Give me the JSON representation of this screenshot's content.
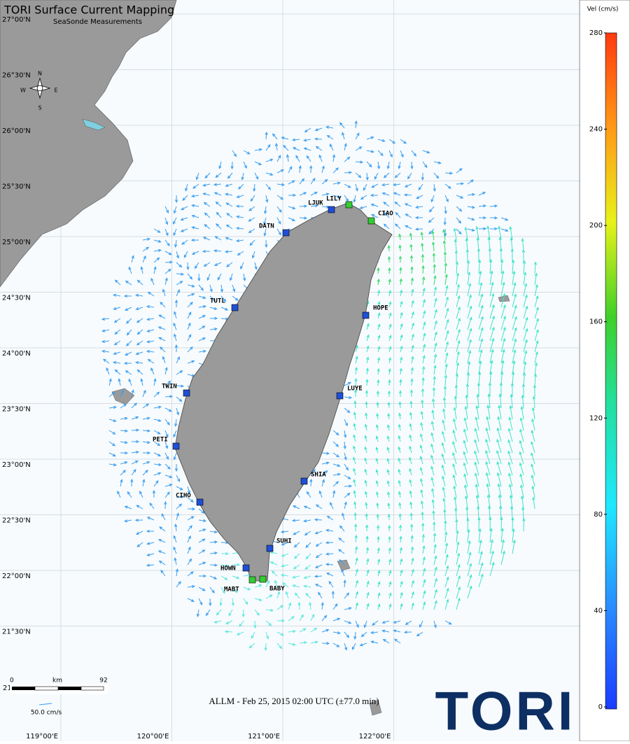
{
  "header": {
    "title": "TORI Surface Current Mapping",
    "subtitle": "SeaSonde Measurements"
  },
  "compass": {
    "n": "N",
    "s": "S",
    "w": "W",
    "e": "E"
  },
  "lat_labels": [
    "27°00'N",
    "26°30'N",
    "26°00'N",
    "25°30'N",
    "25°00'N",
    "24°30'N",
    "24°00'N",
    "23°30'N",
    "23°00'N",
    "22°30'N",
    "22°00'N",
    "21°30'N"
  ],
  "lat_label_fragment": "21",
  "lon_labels": [
    "119°00'E",
    "120°00'E",
    "121°00'E",
    "122°00'E"
  ],
  "stations": [
    {
      "name": "LJUK",
      "color": "#1f4fd6"
    },
    {
      "name": "LILY",
      "color": "#33cc33"
    },
    {
      "name": "CIAO",
      "color": "#33cc33"
    },
    {
      "name": "DATN",
      "color": "#1f4fd6"
    },
    {
      "name": "TUTL",
      "color": "#1f4fd6"
    },
    {
      "name": "HOPE",
      "color": "#1f4fd6"
    },
    {
      "name": "TWIN",
      "color": "#1f4fd6"
    },
    {
      "name": "LUYE",
      "color": "#1f4fd6"
    },
    {
      "name": "PETI",
      "color": "#1f4fd6"
    },
    {
      "name": "SHIA",
      "color": "#1f4fd6"
    },
    {
      "name": "CIHO",
      "color": "#1f4fd6"
    },
    {
      "name": "SUHI",
      "color": "#1f4fd6"
    },
    {
      "name": "HOWN",
      "color": "#1f4fd6"
    },
    {
      "name": "MABT",
      "color": "#33cc33"
    },
    {
      "name": "BABY",
      "color": "#33cc33"
    }
  ],
  "scale_bar": {
    "start": "0",
    "unit": "km",
    "end": "92"
  },
  "vector_legend": "50.0 cm/s",
  "timestamp": "ALLM - Feb 25, 2015 02:00 UTC (±77.0 min)",
  "colorbar": {
    "title": "Vel (cm/s)",
    "ticks": [
      0,
      40,
      80,
      120,
      160,
      200,
      240,
      280
    ]
  },
  "logo": "TORI"
}
